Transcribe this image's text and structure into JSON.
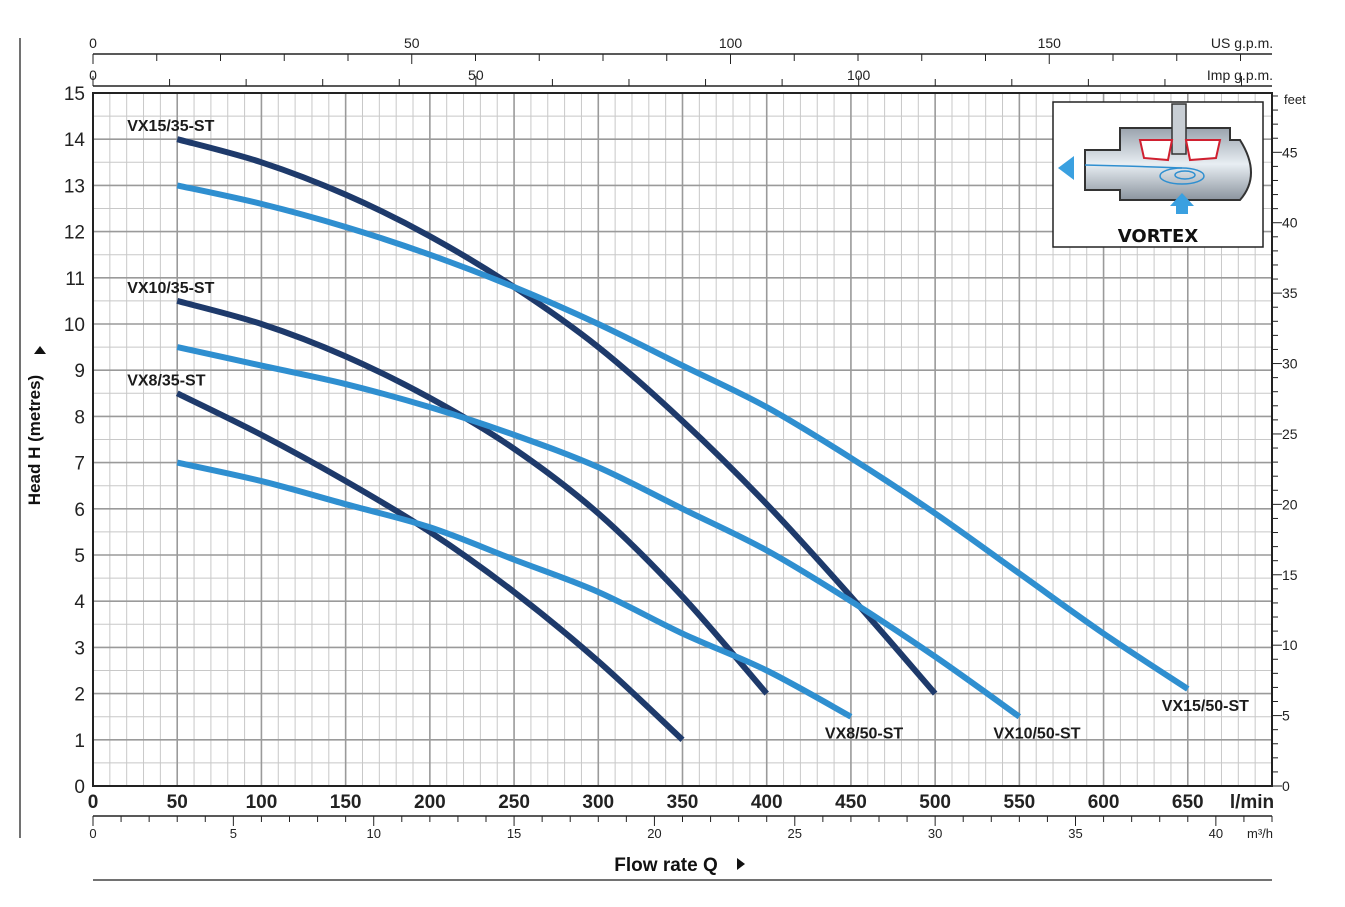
{
  "chart_data": {
    "type": "line",
    "xlabel": "Flow rate Q",
    "ylabel": "Head H  (metres)",
    "x_unit": "l/min",
    "xlim": [
      0,
      700
    ],
    "ylim": [
      0,
      15
    ],
    "x_ticks": [
      0,
      50,
      100,
      150,
      200,
      250,
      300,
      350,
      400,
      450,
      500,
      550,
      600,
      650
    ],
    "y_ticks": [
      0,
      1,
      2,
      3,
      4,
      5,
      6,
      7,
      8,
      9,
      10,
      11,
      12,
      13,
      14,
      15
    ],
    "grid": true,
    "secondary_axes": {
      "us_gpm": {
        "unit": "US g.p.m.",
        "ticks": [
          0,
          50,
          100,
          150
        ]
      },
      "imp_gpm": {
        "unit": "Imp g.p.m.",
        "ticks": [
          0,
          50,
          100
        ]
      },
      "m3h": {
        "unit": "m³/h",
        "ticks": [
          0,
          5,
          10,
          15,
          20,
          25,
          30,
          35,
          40
        ]
      },
      "feet": {
        "unit": "feet",
        "ticks": [
          0,
          5,
          10,
          15,
          20,
          25,
          30,
          35,
          40,
          45
        ]
      }
    },
    "series": [
      {
        "name": "VX15/35-ST",
        "color": "#1e3a6b",
        "x": [
          50,
          100,
          150,
          200,
          250,
          300,
          350,
          400,
          450,
          500
        ],
        "y": [
          14.0,
          13.5,
          12.8,
          11.9,
          10.8,
          9.5,
          7.9,
          6.1,
          4.1,
          2.0
        ]
      },
      {
        "name": "VX15/50-ST",
        "color": "#2f8fd0",
        "x": [
          50,
          100,
          150,
          200,
          250,
          300,
          350,
          400,
          450,
          500,
          550,
          600,
          650
        ],
        "y": [
          13.0,
          12.6,
          12.1,
          11.5,
          10.8,
          10.0,
          9.1,
          8.2,
          7.1,
          5.9,
          4.6,
          3.3,
          2.1
        ]
      },
      {
        "name": "VX10/35-ST",
        "color": "#1e3a6b",
        "x": [
          50,
          100,
          150,
          200,
          250,
          300,
          350,
          400
        ],
        "y": [
          10.5,
          10.0,
          9.3,
          8.4,
          7.3,
          5.9,
          4.1,
          2.0
        ]
      },
      {
        "name": "VX10/50-ST",
        "color": "#2f8fd0",
        "x": [
          50,
          100,
          150,
          200,
          250,
          300,
          350,
          400,
          450,
          500,
          550
        ],
        "y": [
          9.5,
          9.1,
          8.7,
          8.2,
          7.6,
          6.9,
          6.0,
          5.1,
          4.0,
          2.8,
          1.5
        ]
      },
      {
        "name": "VX8/35-ST",
        "color": "#1e3a6b",
        "x": [
          50,
          100,
          150,
          200,
          250,
          300,
          350
        ],
        "y": [
          8.5,
          7.6,
          6.6,
          5.5,
          4.2,
          2.7,
          1.0
        ]
      },
      {
        "name": "VX8/50-ST",
        "color": "#2f8fd0",
        "x": [
          50,
          100,
          150,
          200,
          250,
          300,
          350,
          400,
          450
        ],
        "y": [
          7.0,
          6.6,
          6.1,
          5.6,
          4.9,
          4.2,
          3.3,
          2.5,
          1.5
        ]
      }
    ],
    "inset_caption": "VORTEX"
  }
}
